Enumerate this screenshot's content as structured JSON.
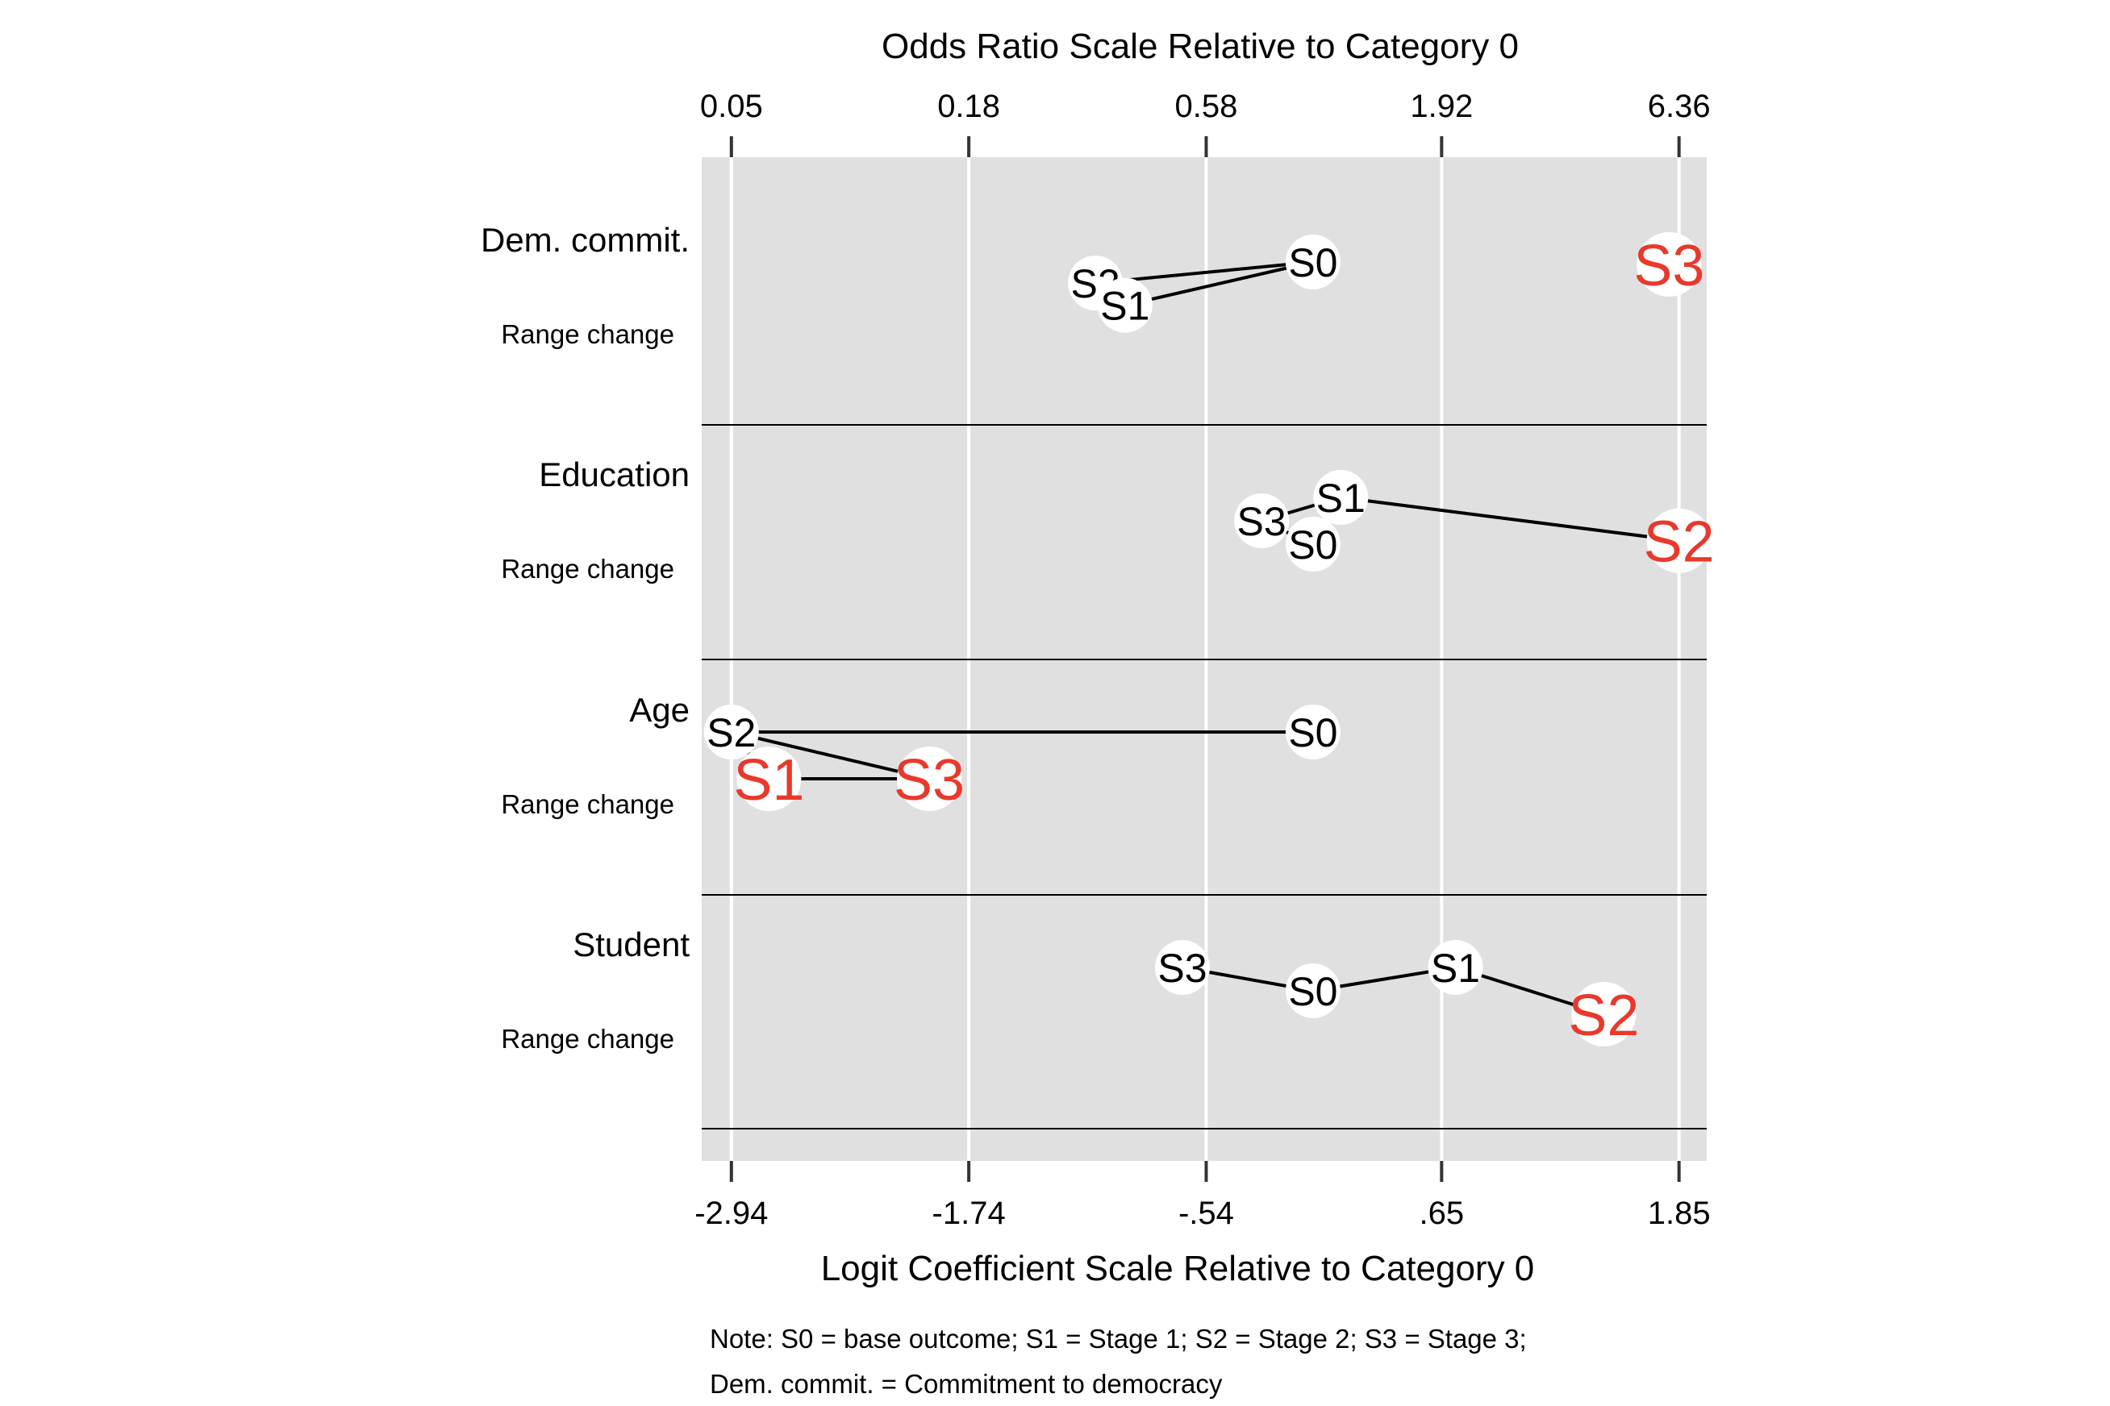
{
  "chart_data": {
    "type": "scatter",
    "top_axis_title": "Odds Ratio Scale Relative to Category 0",
    "bottom_axis_title": "Logit Coefficient Scale Relative to Category 0",
    "logit_ticks": [
      "-2.94",
      "-1.74",
      "-.54",
      ".65",
      "1.85"
    ],
    "odds_ticks": [
      "0.05",
      "0.18",
      "0.58",
      "1.92",
      "6.36"
    ],
    "xlim": [
      -3.09,
      1.99
    ],
    "grid": true,
    "range_label": "Range change",
    "colors": {
      "normal": "#000000",
      "significant": "#e8392b",
      "panel": "#e0e0e0",
      "grid": "#ffffff"
    },
    "panels": [
      {
        "name": "Dem. commit.",
        "points": [
          {
            "label": "S0",
            "x": 0.0,
            "level": 0.0,
            "sig": false
          },
          {
            "label": "S2",
            "x": -1.1,
            "level": 0.18,
            "sig": false
          },
          {
            "label": "S1",
            "x": -0.95,
            "level": 0.37,
            "sig": false
          },
          {
            "label": "S3",
            "x": 1.8,
            "level": 0.02,
            "sig": true
          }
        ],
        "edges": [
          [
            "S0",
            "S2"
          ],
          [
            "S0",
            "S1"
          ]
        ]
      },
      {
        "name": "Education",
        "points": [
          {
            "label": "S1",
            "x": 0.14,
            "level": 0.0,
            "sig": false
          },
          {
            "label": "S3",
            "x": -0.26,
            "level": 0.2,
            "sig": false
          },
          {
            "label": "S0",
            "x": 0.0,
            "level": 0.4,
            "sig": false
          },
          {
            "label": "S2",
            "x": 1.85,
            "level": 0.37,
            "sig": true
          }
        ],
        "edges": [
          [
            "S1",
            "S3"
          ],
          [
            "S1",
            "S0"
          ],
          [
            "S3",
            "S0"
          ],
          [
            "S1",
            "S2"
          ]
        ]
      },
      {
        "name": "Age",
        "points": [
          {
            "label": "S2",
            "x": -2.94,
            "level": 0.0,
            "sig": false
          },
          {
            "label": "S0",
            "x": 0.0,
            "level": 0.0,
            "sig": false
          },
          {
            "label": "S1",
            "x": -2.75,
            "level": 0.4,
            "sig": true
          },
          {
            "label": "S3",
            "x": -1.94,
            "level": 0.4,
            "sig": true
          }
        ],
        "edges": [
          [
            "S2",
            "S0"
          ],
          [
            "S2",
            "S1"
          ],
          [
            "S2",
            "S3"
          ],
          [
            "S1",
            "S3"
          ]
        ]
      },
      {
        "name": "Student",
        "points": [
          {
            "label": "S3",
            "x": -0.66,
            "level": 0.0,
            "sig": false
          },
          {
            "label": "S0",
            "x": 0.0,
            "level": 0.2,
            "sig": false
          },
          {
            "label": "S1",
            "x": 0.72,
            "level": 0.0,
            "sig": false
          },
          {
            "label": "S2",
            "x": 1.47,
            "level": 0.4,
            "sig": true
          }
        ],
        "edges": [
          [
            "S3",
            "S0"
          ],
          [
            "S0",
            "S1"
          ],
          [
            "S1",
            "S2"
          ]
        ]
      }
    ]
  },
  "note": {
    "line1": "Note: S0 = base outcome; S1 = Stage 1; S2 = Stage 2; S3 = Stage 3;",
    "line2": "Dem. commit. = Commitment to democracy"
  }
}
